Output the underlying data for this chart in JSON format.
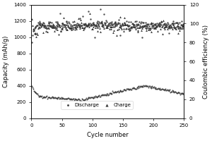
{
  "title": "",
  "xlabel": "Cycle number",
  "ylabel_left": "Capacity (mAh/g)",
  "ylabel_right": "Coulombic efficiency (%)",
  "xlim": [
    0,
    250
  ],
  "ylim_left": [
    0,
    1400
  ],
  "ylim_right": [
    0,
    120
  ],
  "yticks_left": [
    0,
    200,
    400,
    600,
    800,
    1000,
    1200,
    1400
  ],
  "yticks_right": [
    0,
    20,
    40,
    60,
    80,
    100,
    120
  ],
  "xticks": [
    0,
    50,
    100,
    150,
    200,
    250
  ],
  "charge_marker": "^",
  "discharge_marker": "o",
  "data_color": "#333333",
  "background_color": "#ffffff",
  "fontsize": 6,
  "tick_fontsize": 5
}
